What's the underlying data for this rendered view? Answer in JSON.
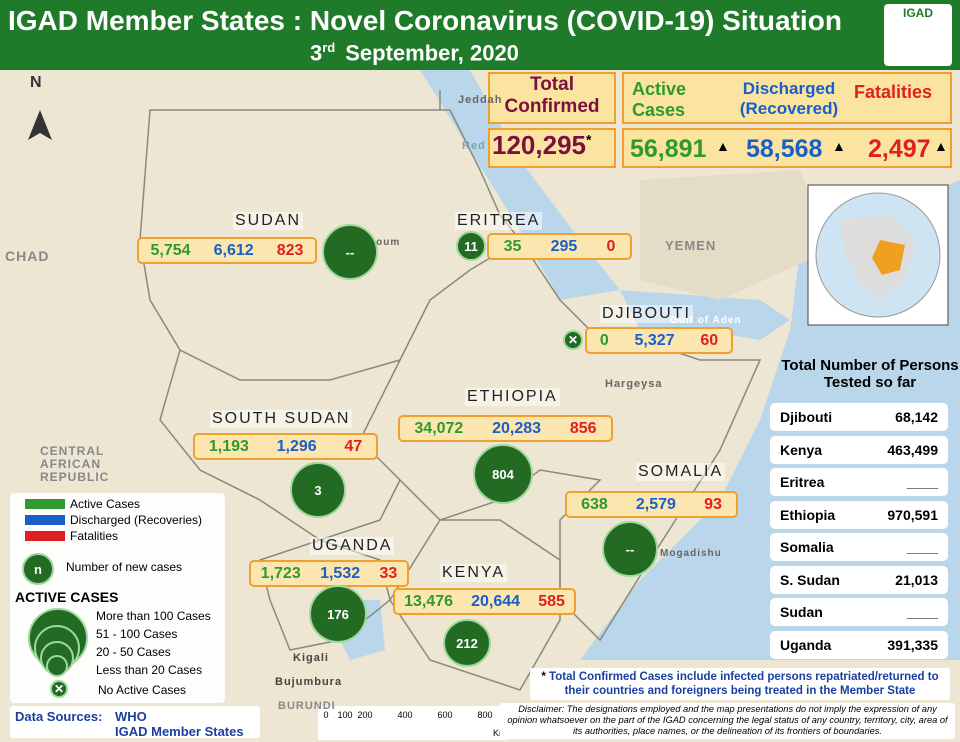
{
  "header": {
    "title": "IGAD Member States : Novel Coronavirus (COVID-19) Situation",
    "date_day": "3",
    "date_suffix": "rd",
    "date_rest": "September, 2020",
    "logo": "IGAD"
  },
  "summary": {
    "total_label": "Total Confirmed",
    "total": "120,295",
    "total_mark": "*",
    "active_label": "Active Cases",
    "discharged_label": "Discharged (Recovered)",
    "fatalities_label": "Fatalities",
    "active": "56,891",
    "discharged": "58,568",
    "fatalities": "2,497"
  },
  "countries": [
    {
      "name": "SUDAN",
      "active": "5,754",
      "discharged": "6,612",
      "fatalities": "823",
      "new_cases": "--"
    },
    {
      "name": "ERITREA",
      "active": "35",
      "discharged": "295",
      "fatalities": "0",
      "new_cases": "11"
    },
    {
      "name": "DJIBOUTI",
      "active": "0",
      "discharged": "5,327",
      "fatalities": "60"
    },
    {
      "name": "SOUTH SUDAN",
      "active": "1,193",
      "discharged": "1,296",
      "fatalities": "47",
      "new_cases": "3"
    },
    {
      "name": "ETHIOPIA",
      "active": "34,072",
      "discharged": "20,283",
      "fatalities": "856",
      "new_cases": "804"
    },
    {
      "name": "SOMALIA",
      "active": "638",
      "discharged": "2,579",
      "fatalities": "93",
      "new_cases": "--"
    },
    {
      "name": "UGANDA",
      "active": "1,723",
      "discharged": "1,532",
      "fatalities": "33",
      "new_cases": "176"
    },
    {
      "name": "KENYA",
      "active": "13,476",
      "discharged": "20,644",
      "fatalities": "585",
      "new_cases": "212"
    }
  ],
  "map_labels": [
    "N",
    "CHAD",
    "CENTRAL AFRICAN REPUBLIC",
    "YEMEN",
    "Red",
    "Jeddah",
    "Khartoum",
    "Hargeysa",
    "Gulf of Aden",
    "Mogadishu",
    "Kigali",
    "Bujumbura",
    "BURUNDI"
  ],
  "legend": {
    "active": "Active Cases",
    "discharged": "Discharged (Recoveries)",
    "fatalities": "Fatalities",
    "n": "n",
    "new_cases": "Number of new cases",
    "title": "ACTIVE CASES",
    "sizes": [
      "More than 100 Cases",
      "51 - 100 Cases",
      "20 - 50 Cases",
      "Less than 20 Cases"
    ],
    "none": "No Active Cases"
  },
  "tested": {
    "title": "Total Number of Persons Tested so far",
    "rows": [
      [
        "Djibouti",
        "68,142"
      ],
      [
        "Kenya",
        "463,499"
      ],
      [
        "Eritrea",
        "____"
      ],
      [
        "Ethiopia",
        "970,591"
      ],
      [
        "Somalia",
        "____"
      ],
      [
        "S. Sudan",
        "21,013"
      ],
      [
        "Sudan",
        "____"
      ],
      [
        "Uganda",
        "391,335"
      ]
    ]
  },
  "note": {
    "mark": "*",
    "text": "Total Confirmed Cases include infected persons repatriated/returned to their countries and foreigners being treated in the Member State"
  },
  "sources": {
    "label": "Data Sources:",
    "items": [
      "WHO",
      "IGAD Member States"
    ]
  },
  "scale": {
    "ticks": [
      "0",
      "100",
      "200",
      "400",
      "600",
      "800"
    ],
    "unit": "Km"
  },
  "disclaimer": "Disclaimer: The designations employed and the map  presentations do not imply the expression of any opinion whatsoever on the part of  the IGAD concerning the legal status of any country, territory, city, area of its authorities, place names, or the delineation of its frontiers of boundaries."
}
